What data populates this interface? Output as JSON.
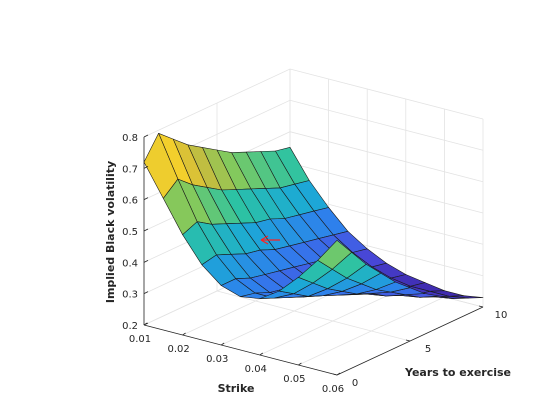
{
  "chart_data": {
    "type": "surface",
    "xlabel": "Strike",
    "ylabel": "Years to exercise",
    "zlabel": "Implied Black volatility",
    "x_ticks": [
      "0.01",
      "0.02",
      "0.03",
      "0.04",
      "0.05",
      "0.06"
    ],
    "y_ticks": [
      "0",
      "5",
      "10"
    ],
    "z_ticks": [
      "0.2",
      "0.3",
      "0.4",
      "0.5",
      "0.6",
      "0.7",
      "0.8"
    ],
    "xlim": [
      0.01,
      0.06
    ],
    "ylim": [
      0,
      10
    ],
    "zlim": [
      0.2,
      0.8
    ],
    "strikes": [
      0.01,
      0.015,
      0.02,
      0.025,
      0.03,
      0.035,
      0.04,
      0.045,
      0.05,
      0.055,
      0.06
    ],
    "years": [
      0,
      1,
      2,
      3,
      4,
      5,
      6,
      7,
      8,
      9,
      10
    ],
    "volatility": [
      [
        0.72,
        0.62,
        0.52,
        0.44,
        0.39,
        0.37,
        0.38,
        0.42,
        0.48,
        0.55,
        0.63
      ],
      [
        0.79,
        0.66,
        0.54,
        0.45,
        0.39,
        0.36,
        0.36,
        0.39,
        0.44,
        0.5,
        0.57
      ],
      [
        0.75,
        0.62,
        0.51,
        0.43,
        0.37,
        0.34,
        0.34,
        0.36,
        0.4,
        0.45,
        0.51
      ],
      [
        0.71,
        0.59,
        0.49,
        0.41,
        0.36,
        0.33,
        0.32,
        0.34,
        0.37,
        0.41,
        0.46
      ],
      [
        0.68,
        0.56,
        0.47,
        0.4,
        0.35,
        0.32,
        0.31,
        0.32,
        0.34,
        0.37,
        0.41
      ],
      [
        0.65,
        0.54,
        0.45,
        0.38,
        0.34,
        0.31,
        0.3,
        0.3,
        0.32,
        0.34,
        0.37
      ],
      [
        0.62,
        0.52,
        0.44,
        0.37,
        0.33,
        0.3,
        0.28,
        0.28,
        0.29,
        0.31,
        0.33
      ],
      [
        0.6,
        0.5,
        0.42,
        0.36,
        0.32,
        0.29,
        0.27,
        0.27,
        0.27,
        0.28,
        0.3
      ],
      [
        0.58,
        0.48,
        0.41,
        0.35,
        0.31,
        0.28,
        0.26,
        0.25,
        0.25,
        0.26,
        0.27
      ],
      [
        0.56,
        0.47,
        0.4,
        0.34,
        0.3,
        0.27,
        0.25,
        0.24,
        0.24,
        0.24,
        0.25
      ],
      [
        0.55,
        0.46,
        0.39,
        0.33,
        0.29,
        0.26,
        0.24,
        0.23,
        0.22,
        0.22,
        0.23
      ]
    ],
    "colormap": [
      "#3e26a8",
      "#4a4de0",
      "#2f7fed",
      "#1ca9d6",
      "#2cc2a4",
      "#7cca60",
      "#cfbb3b",
      "#fbd428",
      "#f9fb15"
    ],
    "grid": true
  }
}
